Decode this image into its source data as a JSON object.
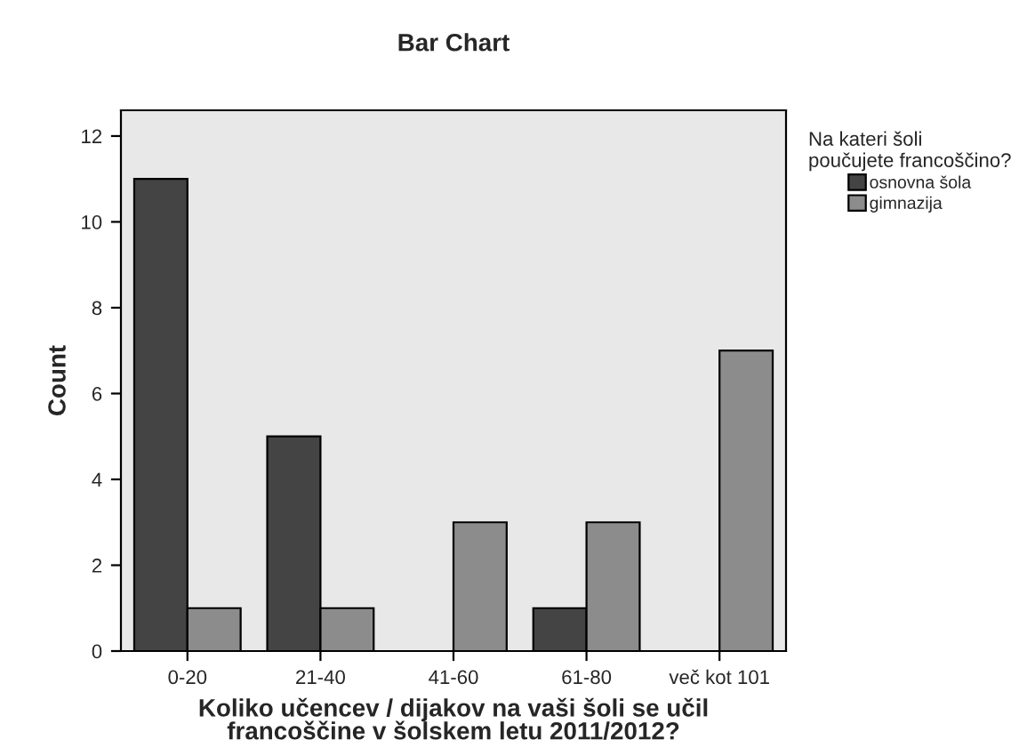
{
  "chart_data": {
    "type": "bar",
    "title": "Bar Chart",
    "xlabel": "Koliko učencev / dijakov na vaši šoli se učil\nfrancoščine v šolskem letu 2011/2012?",
    "ylabel": "Count",
    "legend_title": "Na kateri šoli\npoučujete francoščino?",
    "categories": [
      "0-20",
      "21-40",
      "41-60",
      "61-80",
      "več kot 101"
    ],
    "series": [
      {
        "name": "osnovna šola",
        "color": "#444444",
        "values": [
          11,
          5,
          null,
          1,
          null
        ]
      },
      {
        "name": "gimnazija",
        "color": "#8c8c8c",
        "values": [
          1,
          1,
          3,
          3,
          7
        ]
      }
    ],
    "ylim": [
      0,
      12.6
    ],
    "yticks": [
      0,
      2,
      4,
      6,
      8,
      10,
      12
    ],
    "grid": false,
    "legend": "right"
  }
}
